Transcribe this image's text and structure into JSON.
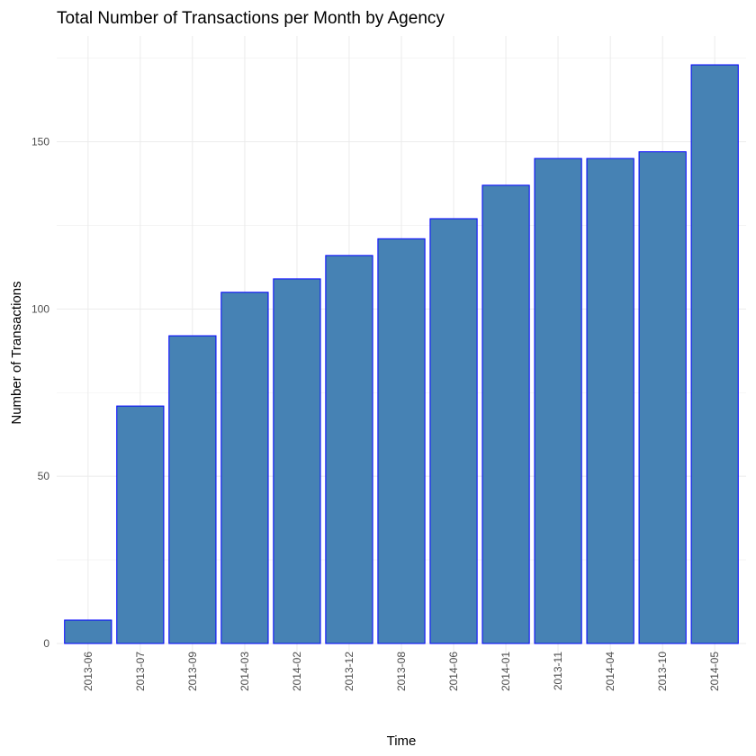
{
  "chart_data": {
    "type": "bar",
    "title": "Total Number of Transactions per Month by Agency",
    "xlabel": "Time",
    "ylabel": "Number of Transactions",
    "categories": [
      "2013-06",
      "2013-07",
      "2013-09",
      "2014-03",
      "2014-02",
      "2013-12",
      "2013-08",
      "2014-06",
      "2014-01",
      "2013-11",
      "2014-04",
      "2013-10",
      "2014-05"
    ],
    "values": [
      7,
      71,
      92,
      105,
      109,
      116,
      121,
      127,
      137,
      145,
      145,
      147,
      173
    ],
    "ylim": [
      0,
      175
    ],
    "yticks": [
      0,
      50,
      100,
      150
    ],
    "grid": true,
    "bar_fill": "#4682B4",
    "bar_outline": "#0000FF"
  }
}
